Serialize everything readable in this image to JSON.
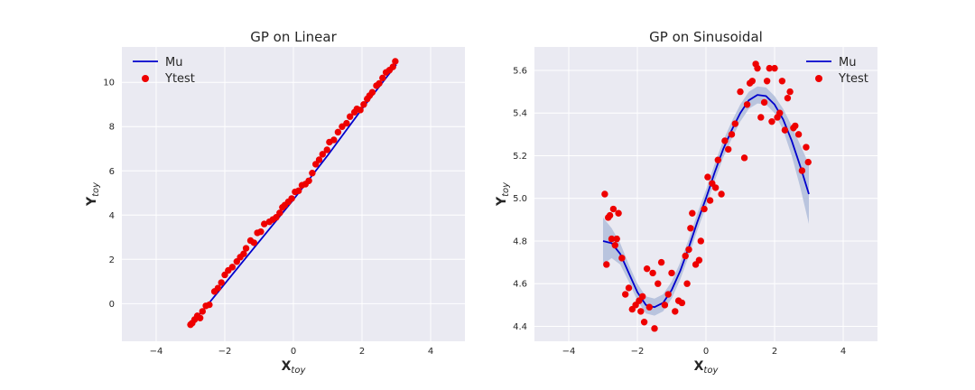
{
  "colors": {
    "mu": "#0000cc",
    "ytest": "#ee0000",
    "band": "#b4c0dc",
    "axes_bg": "#eaeaf2",
    "grid": "#ffffff"
  },
  "chart_data": [
    {
      "type": "line",
      "title": "GP on Linear",
      "xlabel_main": "X",
      "xlabel_sub": "toy",
      "ylabel_main": "Y",
      "ylabel_sub": "toy",
      "xlim": [
        -5,
        5
      ],
      "ylim": [
        -1.7,
        11.6
      ],
      "xticks": [
        -4,
        -2,
        0,
        2,
        4
      ],
      "yticks": [
        0,
        2,
        4,
        6,
        8,
        10
      ],
      "grid": true,
      "legend_placement": "top-left",
      "legend": [
        "Mu",
        "Ytest"
      ],
      "series": [
        {
          "name": "Mu",
          "kind": "line",
          "x": [
            -3.0,
            -2.5,
            -2.0,
            -1.5,
            -1.0,
            -0.5,
            0.0,
            0.5,
            1.0,
            1.5,
            2.0,
            2.5,
            3.0
          ],
          "y": [
            -0.95,
            -0.05,
            0.9,
            1.85,
            2.8,
            3.75,
            4.7,
            5.7,
            6.7,
            7.75,
            8.8,
            9.8,
            10.8
          ]
        },
        {
          "name": "Ytest",
          "kind": "scatter",
          "x": [
            -3.0,
            -2.95,
            -2.88,
            -2.8,
            -2.72,
            -2.65,
            -2.55,
            -2.45,
            -2.3,
            -2.2,
            -2.1,
            -2.0,
            -1.9,
            -1.78,
            -1.65,
            -1.55,
            -1.45,
            -1.38,
            -1.25,
            -1.15,
            -1.05,
            -0.95,
            -0.85,
            -0.7,
            -0.6,
            -0.5,
            -0.4,
            -0.32,
            -0.25,
            -0.15,
            -0.05,
            0.05,
            0.15,
            0.25,
            0.35,
            0.45,
            0.55,
            0.65,
            0.75,
            0.85,
            0.98,
            1.05,
            1.18,
            1.3,
            1.42,
            1.55,
            1.65,
            1.78,
            1.85,
            1.95,
            2.05,
            2.15,
            2.22,
            2.3,
            2.42,
            2.5,
            2.6,
            2.7,
            2.8,
            2.9,
            2.97
          ],
          "y": [
            -0.95,
            -0.88,
            -0.72,
            -0.55,
            -0.65,
            -0.35,
            -0.1,
            -0.05,
            0.55,
            0.7,
            0.95,
            1.3,
            1.5,
            1.65,
            1.9,
            2.1,
            2.25,
            2.5,
            2.85,
            2.75,
            3.2,
            3.25,
            3.6,
            3.7,
            3.8,
            3.9,
            4.1,
            4.35,
            4.45,
            4.6,
            4.75,
            5.05,
            5.1,
            5.35,
            5.4,
            5.55,
            5.9,
            6.3,
            6.5,
            6.75,
            6.95,
            7.3,
            7.4,
            7.75,
            8.0,
            8.15,
            8.45,
            8.65,
            8.8,
            8.75,
            9.0,
            9.25,
            9.4,
            9.55,
            9.85,
            9.95,
            10.2,
            10.45,
            10.55,
            10.7,
            10.95
          ]
        }
      ]
    },
    {
      "type": "line",
      "title": "GP on Sinusoidal",
      "xlabel_main": "X",
      "xlabel_sub": "toy",
      "ylabel_main": "Y",
      "ylabel_sub": "toy",
      "xlim": [
        -5,
        5
      ],
      "ylim": [
        4.33,
        5.71
      ],
      "xticks": [
        -4,
        -2,
        0,
        2,
        4
      ],
      "yticks": [
        4.4,
        4.6,
        4.8,
        5.0,
        5.2,
        5.4,
        5.6
      ],
      "grid": true,
      "legend_placement": "top-right",
      "legend": [
        "Mu",
        "Ytest"
      ],
      "series": [
        {
          "name": "Mu",
          "kind": "line",
          "x": [
            -3.0,
            -2.75,
            -2.5,
            -2.25,
            -2.0,
            -1.75,
            -1.5,
            -1.25,
            -1.0,
            -0.75,
            -0.5,
            -0.25,
            0.0,
            0.25,
            0.5,
            0.75,
            1.0,
            1.25,
            1.5,
            1.75,
            2.0,
            2.25,
            2.5,
            2.75,
            3.0
          ],
          "y": [
            4.8,
            4.79,
            4.74,
            4.65,
            4.56,
            4.5,
            4.49,
            4.51,
            4.57,
            4.66,
            4.77,
            4.89,
            5.0,
            5.12,
            5.23,
            5.32,
            5.4,
            5.46,
            5.485,
            5.48,
            5.44,
            5.37,
            5.27,
            5.15,
            5.02
          ]
        },
        {
          "name": "confidence band",
          "kind": "band",
          "x": [
            -3.0,
            -2.75,
            -2.5,
            -2.25,
            -2.0,
            -1.75,
            -1.5,
            -1.25,
            -1.0,
            -0.75,
            -0.5,
            -0.25,
            0.0,
            0.25,
            0.5,
            0.75,
            1.0,
            1.25,
            1.5,
            1.75,
            2.0,
            2.25,
            2.5,
            2.75,
            3.0
          ],
          "lower": [
            4.69,
            4.72,
            4.69,
            4.61,
            4.52,
            4.46,
            4.45,
            4.47,
            4.53,
            4.62,
            4.73,
            4.85,
            4.96,
            5.08,
            5.19,
            5.28,
            5.36,
            5.42,
            5.445,
            5.44,
            5.4,
            5.32,
            5.2,
            5.05,
            4.88
          ],
          "upper": [
            4.91,
            4.86,
            4.79,
            4.69,
            4.6,
            4.54,
            4.53,
            4.55,
            4.61,
            4.7,
            4.81,
            4.93,
            5.04,
            5.16,
            5.27,
            5.36,
            5.44,
            5.5,
            5.525,
            5.52,
            5.48,
            5.42,
            5.34,
            5.25,
            5.16
          ]
        },
        {
          "name": "Ytest",
          "kind": "scatter",
          "x": [
            -2.95,
            -2.9,
            -2.85,
            -2.8,
            -2.75,
            -2.7,
            -2.65,
            -2.6,
            -2.55,
            -2.45,
            -2.35,
            -2.25,
            -2.15,
            -2.05,
            -1.95,
            -1.9,
            -1.85,
            -1.8,
            -1.72,
            -1.65,
            -1.55,
            -1.5,
            -1.4,
            -1.3,
            -1.2,
            -1.1,
            -1.0,
            -0.9,
            -0.8,
            -0.7,
            -0.6,
            -0.55,
            -0.5,
            -0.45,
            -0.4,
            -0.3,
            -0.2,
            -0.15,
            -0.05,
            0.05,
            0.12,
            0.18,
            0.28,
            0.35,
            0.45,
            0.55,
            0.65,
            0.75,
            0.85,
            1.0,
            1.12,
            1.2,
            1.28,
            1.35,
            1.45,
            1.5,
            1.6,
            1.7,
            1.78,
            1.85,
            1.92,
            2.0,
            2.08,
            2.15,
            2.22,
            2.3,
            2.38,
            2.45,
            2.55,
            2.6,
            2.7,
            2.8,
            2.92,
            2.98
          ],
          "y": [
            5.02,
            4.69,
            4.91,
            4.92,
            4.81,
            4.95,
            4.78,
            4.81,
            4.93,
            4.72,
            4.55,
            4.58,
            4.48,
            4.5,
            4.52,
            4.47,
            4.54,
            4.42,
            4.67,
            4.49,
            4.65,
            4.39,
            4.6,
            4.7,
            4.5,
            4.55,
            4.65,
            4.47,
            4.52,
            4.51,
            4.73,
            4.6,
            4.76,
            4.86,
            4.93,
            4.69,
            4.71,
            4.8,
            4.95,
            5.1,
            4.99,
            5.07,
            5.05,
            5.18,
            5.02,
            5.27,
            5.23,
            5.3,
            5.35,
            5.5,
            5.19,
            5.44,
            5.54,
            5.55,
            5.63,
            5.61,
            5.38,
            5.45,
            5.55,
            5.61,
            5.36,
            5.61,
            5.38,
            5.4,
            5.55,
            5.32,
            5.47,
            5.5,
            5.33,
            5.34,
            5.3,
            5.13,
            5.24,
            5.17
          ]
        }
      ]
    }
  ]
}
